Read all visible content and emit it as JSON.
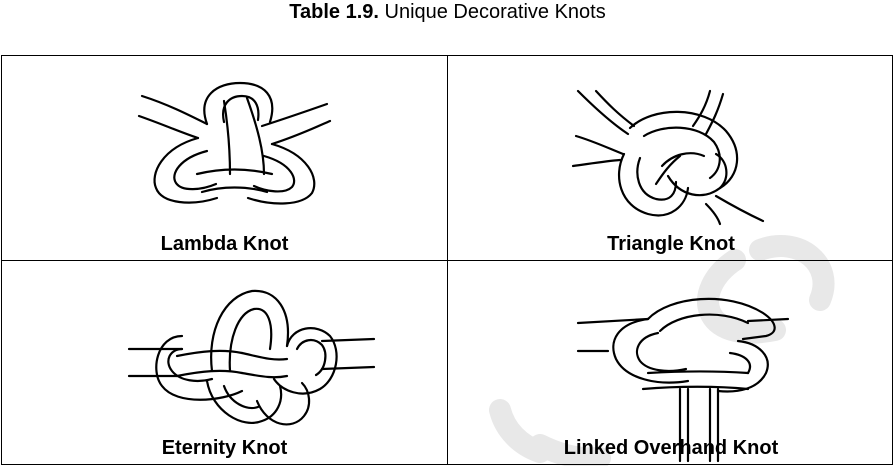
{
  "caption": {
    "number": "Table 1.9.",
    "title": "Unique Decorative Knots"
  },
  "knots": [
    {
      "label": "Lambda Knot",
      "icon": "lambda-knot-icon"
    },
    {
      "label": "Triangle Knot",
      "icon": "triangle-knot-icon"
    },
    {
      "label": "Eternity Knot",
      "icon": "eternity-knot-icon"
    },
    {
      "label": "Linked Overhand Knot",
      "icon": "linked-overhand-knot-icon"
    }
  ],
  "colors": {
    "line": "#000000",
    "watermark": "#e6e6e6"
  }
}
